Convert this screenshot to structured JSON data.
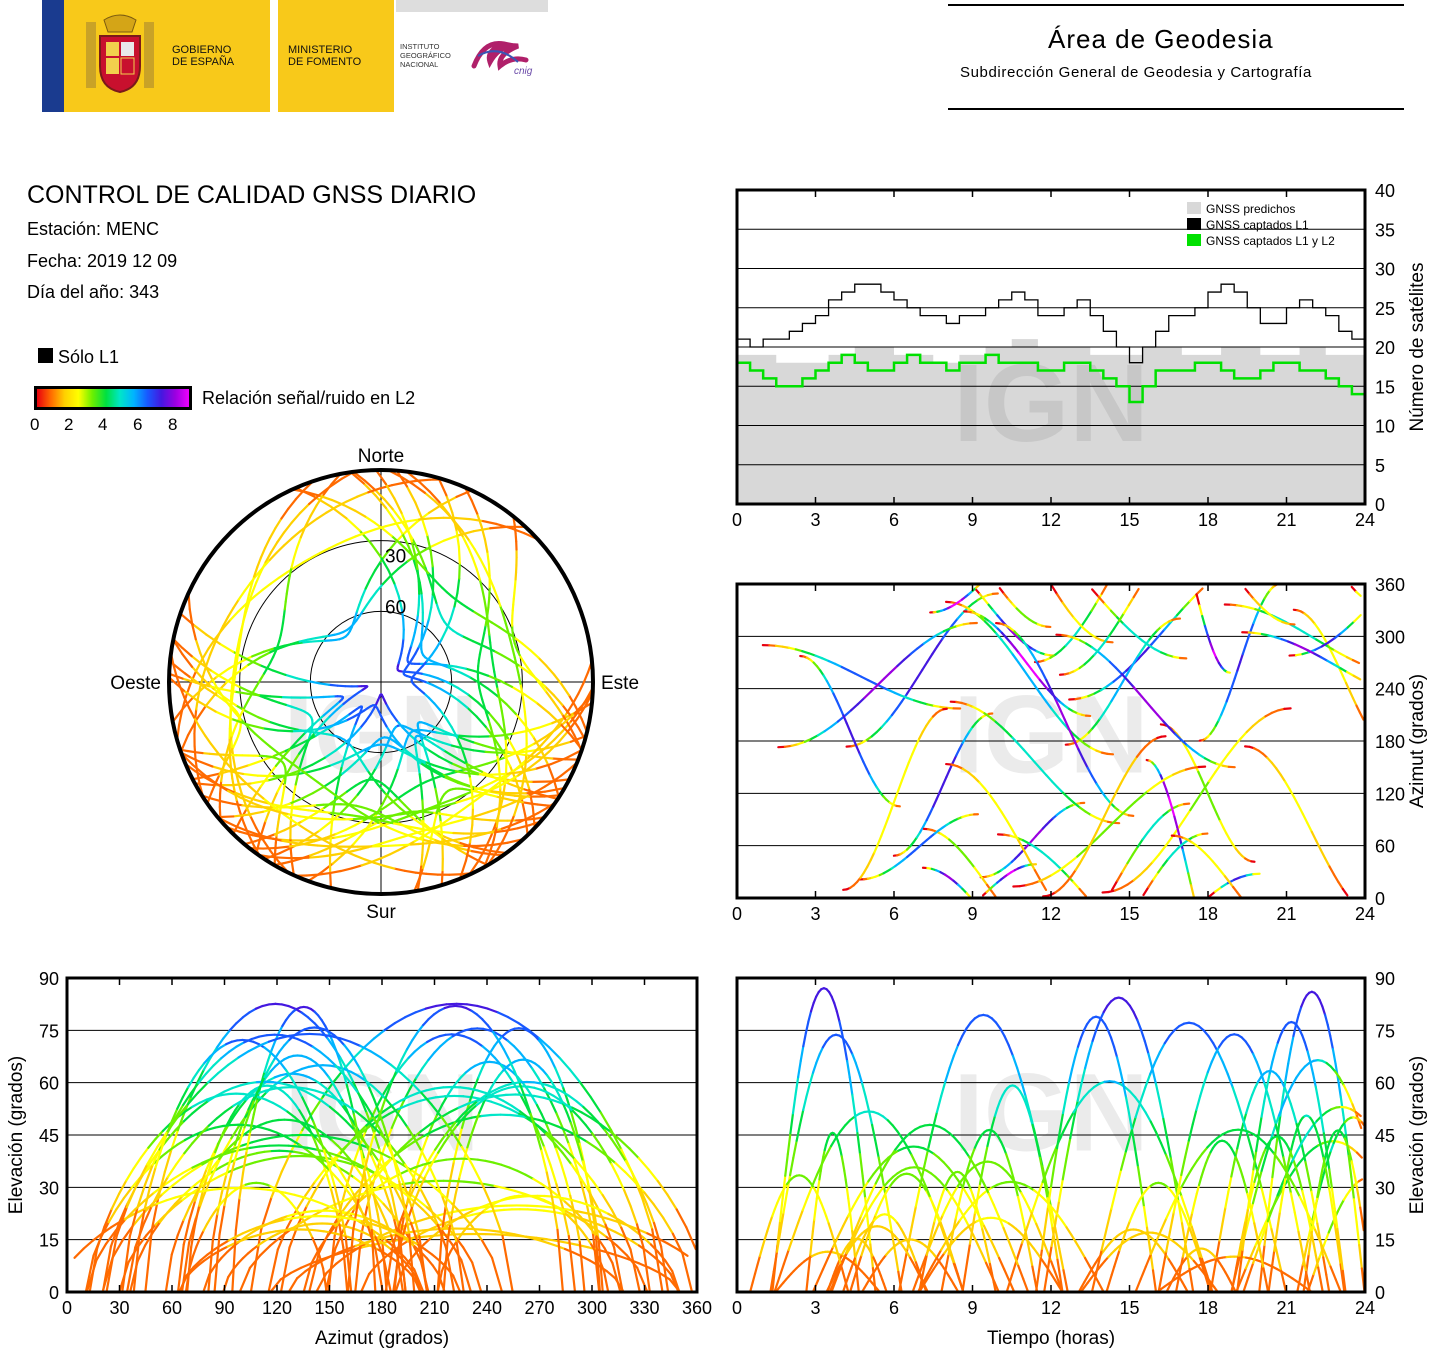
{
  "header": {
    "gov_line1": "GOBIERNO",
    "gov_line2": "DE ESPAÑA",
    "min_line1": "MINISTERIO",
    "min_line2": "DE FOMENTO",
    "ign_line1": "INSTITUTO",
    "ign_line2": "GEOGRÁFICO",
    "ign_line3": "NACIONAL",
    "cnig": "cnig",
    "area_title": "Área de Geodesia",
    "area_subtitle": "Subdirección General de Geodesia y Cartografía"
  },
  "info": {
    "title": "CONTROL DE CALIDAD GNSS DIARIO",
    "station": "Estación: MENC",
    "date": "Fecha: 2019 12 09",
    "doy": "Día del año: 343",
    "solo_l1": "Sólo L1",
    "snr_label": "Relación señal/ruido en L2",
    "cb_ticks": [
      "0",
      "2",
      "4",
      "6",
      "8"
    ]
  },
  "colors": {
    "predicted": "#d8d8d8",
    "l1": "#000000",
    "l1l2": "#00e000",
    "snr_scale": [
      "#e8000f",
      "#ff6a00",
      "#ffd000",
      "#ffff00",
      "#6cf000",
      "#00e040",
      "#00e6c8",
      "#00b4ff",
      "#1858ff",
      "#4418e0",
      "#9a00e0",
      "#ee00ff"
    ]
  },
  "watermark": "IGN",
  "chart_data": [
    {
      "type": "line",
      "id": "satellites",
      "xlabel": "",
      "ylabel": "Número de satélites",
      "xlim": [
        0,
        24
      ],
      "ylim": [
        0,
        40
      ],
      "xticks": [
        "0",
        "3",
        "6",
        "9",
        "12",
        "15",
        "18",
        "21",
        "24"
      ],
      "yticks": [
        "0",
        "5",
        "10",
        "15",
        "20",
        "25",
        "30",
        "35",
        "40"
      ],
      "legend_position": "top-right",
      "series": [
        {
          "name": "GNSS predichos",
          "type": "area",
          "x": [
            0,
            0.5,
            1,
            1.5,
            2,
            2.5,
            3,
            3.5,
            4,
            4.5,
            5,
            5.5,
            6,
            6.5,
            7,
            7.5,
            8,
            8.5,
            9,
            9.5,
            10,
            10.5,
            11,
            11.5,
            12,
            12.5,
            13,
            13.5,
            14,
            14.5,
            15,
            15.5,
            16,
            16.5,
            17,
            17.5,
            18,
            18.5,
            19,
            19.5,
            20,
            20.5,
            21,
            21.5,
            22,
            22.5,
            23,
            23.5,
            24
          ],
          "y": [
            19,
            19,
            19,
            18,
            18,
            18,
            18,
            19,
            19,
            20,
            20,
            20,
            19,
            19,
            19,
            18,
            18,
            19,
            19,
            20,
            20,
            21,
            21,
            20,
            20,
            20,
            20,
            19,
            19,
            19,
            19,
            20,
            20,
            20,
            19,
            19,
            19,
            20,
            20,
            20,
            19,
            19,
            19,
            20,
            20,
            19,
            19,
            19,
            19
          ]
        },
        {
          "name": "GNSS captados L1",
          "type": "step",
          "x": [
            0,
            0.5,
            1,
            1.5,
            2,
            2.5,
            3,
            3.5,
            4,
            4.5,
            5,
            5.5,
            6,
            6.5,
            7,
            7.5,
            8,
            8.5,
            9,
            9.5,
            10,
            10.5,
            11,
            11.5,
            12,
            12.5,
            13,
            13.5,
            14,
            14.5,
            15,
            15.5,
            16,
            16.5,
            17,
            17.5,
            18,
            18.5,
            19,
            19.5,
            20,
            20.5,
            21,
            21.5,
            22,
            22.5,
            23,
            23.5,
            24
          ],
          "y": [
            21,
            20,
            21,
            21,
            22,
            23,
            24,
            26,
            27,
            28,
            28,
            27,
            26,
            25,
            24,
            24,
            23,
            24,
            24,
            25,
            26,
            27,
            26,
            24,
            24,
            25,
            26,
            24,
            22,
            20,
            18,
            20,
            22,
            24,
            24,
            25,
            27,
            28,
            27,
            25,
            23,
            23,
            25,
            26,
            25,
            24,
            22,
            21,
            21
          ]
        },
        {
          "name": "GNSS captados L1 y L2",
          "type": "step",
          "x": [
            0,
            0.5,
            1,
            1.5,
            2,
            2.5,
            3,
            3.5,
            4,
            4.5,
            5,
            5.5,
            6,
            6.5,
            7,
            7.5,
            8,
            8.5,
            9,
            9.5,
            10,
            10.5,
            11,
            11.5,
            12,
            12.5,
            13,
            13.5,
            14,
            14.5,
            15,
            15.5,
            16,
            16.5,
            17,
            17.5,
            18,
            18.5,
            19,
            19.5,
            20,
            20.5,
            21,
            21.5,
            22,
            22.5,
            23,
            23.5,
            24
          ],
          "y": [
            18,
            17,
            16,
            15,
            15,
            16,
            17,
            18,
            19,
            18,
            17,
            17,
            18,
            19,
            18,
            18,
            17,
            18,
            18,
            19,
            18,
            18,
            18,
            17,
            17,
            18,
            18,
            17,
            16,
            15,
            13,
            15,
            17,
            17,
            17,
            18,
            18,
            17,
            16,
            16,
            17,
            18,
            18,
            17,
            17,
            16,
            15,
            14,
            15
          ]
        }
      ]
    },
    {
      "type": "scatter",
      "id": "azimuth_vs_time",
      "xlabel": "",
      "ylabel": "Azimut (grados)",
      "xlim": [
        0,
        24
      ],
      "ylim": [
        0,
        360
      ],
      "xticks": [
        "0",
        "3",
        "6",
        "9",
        "12",
        "15",
        "18",
        "21",
        "24"
      ],
      "yticks": [
        "0",
        "60",
        "120",
        "180",
        "240",
        "300",
        "360"
      ]
    },
    {
      "type": "scatter",
      "id": "skyplot",
      "directions": {
        "north": "Norte",
        "south": "Sur",
        "east": "Este",
        "west": "Oeste"
      },
      "elevation_rings": [
        "30",
        "60"
      ]
    },
    {
      "type": "scatter",
      "id": "elevation_vs_azimuth",
      "xlabel": "Azimut (grados)",
      "ylabel": "Elevación (grados)",
      "xlim": [
        0,
        360
      ],
      "ylim": [
        0,
        90
      ],
      "xticks": [
        "0",
        "30",
        "60",
        "90",
        "120",
        "150",
        "180",
        "210",
        "240",
        "270",
        "300",
        "330",
        "360"
      ],
      "yticks": [
        "0",
        "15",
        "30",
        "45",
        "60",
        "75",
        "90"
      ]
    },
    {
      "type": "scatter",
      "id": "elevation_vs_time",
      "xlabel": "Tiempo (horas)",
      "ylabel": "Elevación (grados)",
      "xlim": [
        0,
        24
      ],
      "ylim": [
        0,
        90
      ],
      "xticks": [
        "0",
        "3",
        "6",
        "9",
        "12",
        "15",
        "18",
        "21",
        "24"
      ],
      "yticks": [
        "0",
        "15",
        "30",
        "45",
        "60",
        "75",
        "90"
      ]
    }
  ]
}
